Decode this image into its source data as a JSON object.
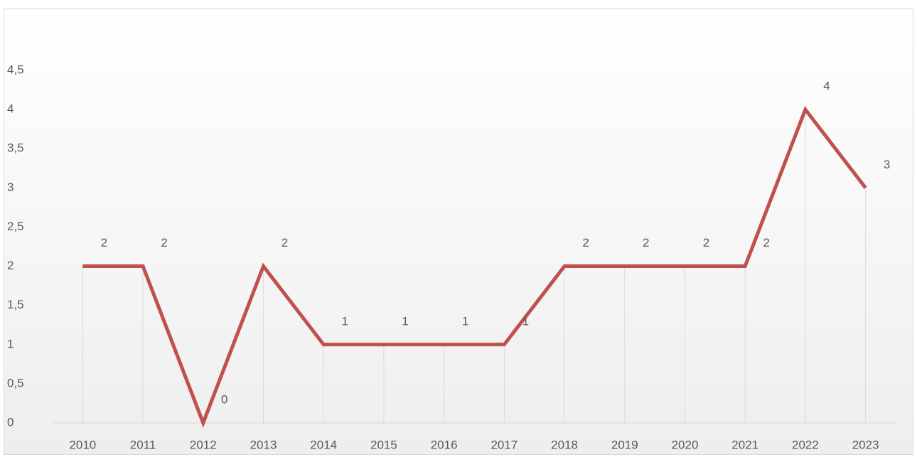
{
  "chart_data": {
    "type": "line",
    "categories": [
      "2010",
      "2011",
      "2012",
      "2013",
      "2014",
      "2015",
      "2016",
      "2017",
      "2018",
      "2019",
      "2020",
      "2021",
      "2022",
      "2023"
    ],
    "values": [
      2,
      2,
      0,
      2,
      1,
      1,
      1,
      1,
      2,
      2,
      2,
      2,
      4,
      3
    ],
    "color": "#c0504d",
    "ylim": [
      0,
      4.5
    ],
    "yticks": [
      0,
      {
        "value": 0.5,
        "label": "0,5"
      },
      1,
      {
        "value": 1.5,
        "label": "1,5"
      },
      2,
      {
        "value": 2.5,
        "label": "2,5"
      },
      3,
      {
        "value": 3.5,
        "label": "3,5"
      },
      4,
      {
        "value": 4.5,
        "label": "4,5"
      }
    ],
    "drop_lines": true
  }
}
